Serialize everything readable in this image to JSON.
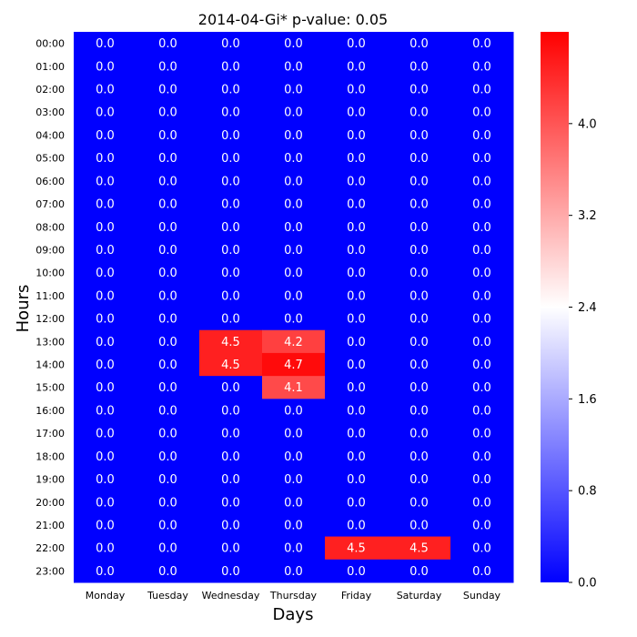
{
  "chart_data": {
    "type": "heatmap",
    "title": "2014-04-Gi* p-value: 0.05",
    "xlabel": "Days",
    "ylabel": "Hours",
    "x_categories": [
      "Monday",
      "Tuesday",
      "Wednesday",
      "Thursday",
      "Friday",
      "Saturday",
      "Sunday"
    ],
    "y_categories": [
      "00:00",
      "01:00",
      "02:00",
      "03:00",
      "04:00",
      "05:00",
      "06:00",
      "07:00",
      "08:00",
      "09:00",
      "10:00",
      "11:00",
      "12:00",
      "13:00",
      "14:00",
      "15:00",
      "16:00",
      "17:00",
      "18:00",
      "19:00",
      "20:00",
      "21:00",
      "22:00",
      "23:00"
    ],
    "values": [
      [
        0,
        0,
        0,
        0,
        0,
        0,
        0
      ],
      [
        0,
        0,
        0,
        0,
        0,
        0,
        0
      ],
      [
        0,
        0,
        0,
        0,
        0,
        0,
        0
      ],
      [
        0,
        0,
        0,
        0,
        0,
        0,
        0
      ],
      [
        0,
        0,
        0,
        0,
        0,
        0,
        0
      ],
      [
        0,
        0,
        0,
        0,
        0,
        0,
        0
      ],
      [
        0,
        0,
        0,
        0,
        0,
        0,
        0
      ],
      [
        0,
        0,
        0,
        0,
        0,
        0,
        0
      ],
      [
        0,
        0,
        0,
        0,
        0,
        0,
        0
      ],
      [
        0,
        0,
        0,
        0,
        0,
        0,
        0
      ],
      [
        0,
        0,
        0,
        0,
        0,
        0,
        0
      ],
      [
        0,
        0,
        0,
        0,
        0,
        0,
        0
      ],
      [
        0,
        0,
        0,
        0,
        0,
        0,
        0
      ],
      [
        0,
        0,
        4.5,
        4.2,
        0,
        0,
        0
      ],
      [
        0,
        0,
        4.5,
        4.7,
        0,
        0,
        0
      ],
      [
        0,
        0,
        0,
        4.1,
        0,
        0,
        0
      ],
      [
        0,
        0,
        0,
        0,
        0,
        0,
        0
      ],
      [
        0,
        0,
        0,
        0,
        0,
        0,
        0
      ],
      [
        0,
        0,
        0,
        0,
        0,
        0,
        0
      ],
      [
        0,
        0,
        0,
        0,
        0,
        0,
        0
      ],
      [
        0,
        0,
        0,
        0,
        0,
        0,
        0
      ],
      [
        0,
        0,
        0,
        0,
        0,
        0,
        0
      ],
      [
        0,
        0,
        0,
        0,
        4.5,
        4.5,
        0
      ],
      [
        0,
        0,
        0,
        0,
        0,
        0,
        0
      ]
    ],
    "colorbar": {
      "min": 0.0,
      "max": 4.8,
      "ticks": [
        "0.0",
        "0.8",
        "1.6",
        "2.4",
        "3.2",
        "4.0"
      ],
      "colors": [
        "#0000ff",
        "#ffffff",
        "#ff0000"
      ]
    }
  }
}
